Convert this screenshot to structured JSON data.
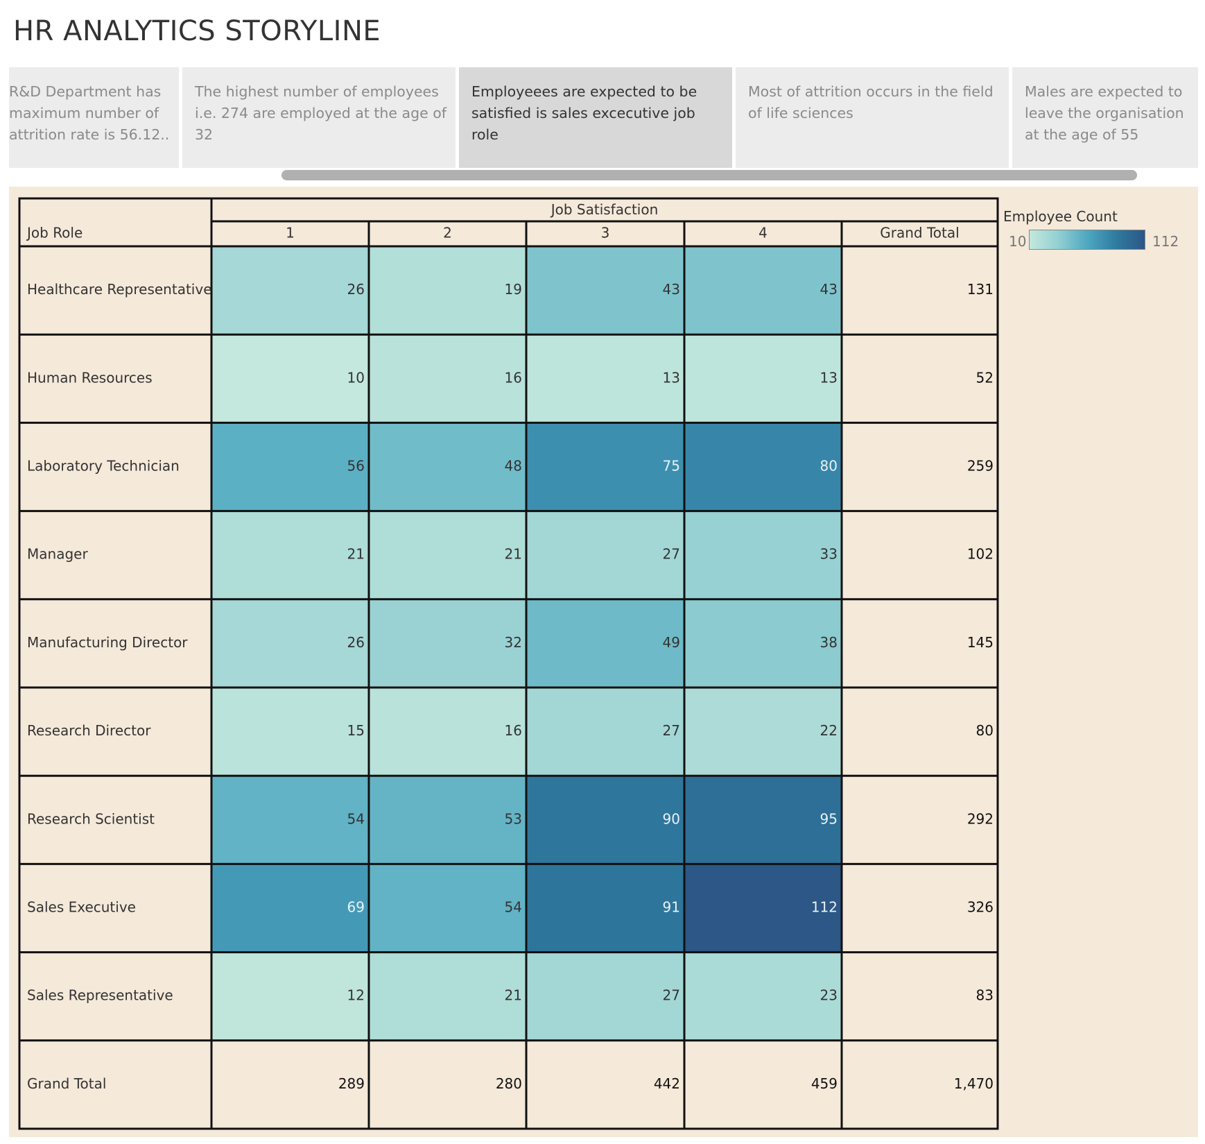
{
  "dashboard": {
    "title": "HR ANALYTICS STORYLINE"
  },
  "story_points": [
    {
      "text": "R&D Department has maximum number of attrition rate is 56.12..",
      "active": false
    },
    {
      "text": "The highest number of employees i.e. 274 are  employed at the age of 32",
      "active": false
    },
    {
      "text": "Employeees are expected to be satisfied is sales excecutive job role",
      "active": true
    },
    {
      "text": "Most of attrition occurs in the field of life sciences",
      "active": false
    },
    {
      "text": "Males are expected to leave the organisation at the age of 55",
      "active": false
    }
  ],
  "legend": {
    "title": "Employee Count",
    "min_label": "10",
    "max_label": "112",
    "min": 10,
    "max": 112,
    "colors": [
      "#c4e8dd",
      "#93cfd2",
      "#4ea8c0",
      "#2f7ba1",
      "#2c5786"
    ]
  },
  "chart_data": {
    "type": "heatmap",
    "column_header": "Job Satisfaction",
    "row_header": "Job Role",
    "columns": [
      "1",
      "2",
      "3",
      "4"
    ],
    "grand_total_label": "Grand Total",
    "rows": [
      {
        "label": "Healthcare Representative",
        "values": [
          26,
          19,
          43,
          43
        ],
        "total": "131"
      },
      {
        "label": "Human Resources",
        "values": [
          10,
          16,
          13,
          13
        ],
        "total": "52"
      },
      {
        "label": "Laboratory Technician",
        "values": [
          56,
          48,
          75,
          80
        ],
        "total": "259"
      },
      {
        "label": "Manager",
        "values": [
          21,
          21,
          27,
          33
        ],
        "total": "102"
      },
      {
        "label": "Manufacturing Director",
        "values": [
          26,
          32,
          49,
          38
        ],
        "total": "145"
      },
      {
        "label": "Research Director",
        "values": [
          15,
          16,
          27,
          22
        ],
        "total": "80"
      },
      {
        "label": "Research Scientist",
        "values": [
          54,
          53,
          90,
          95
        ],
        "total": "292"
      },
      {
        "label": "Sales Executive",
        "values": [
          69,
          54,
          91,
          112
        ],
        "total": "326"
      },
      {
        "label": "Sales Representative",
        "values": [
          12,
          21,
          27,
          23
        ],
        "total": "83"
      }
    ],
    "column_totals": [
      "289",
      "280",
      "442",
      "459"
    ],
    "overall_total": "1,470"
  }
}
